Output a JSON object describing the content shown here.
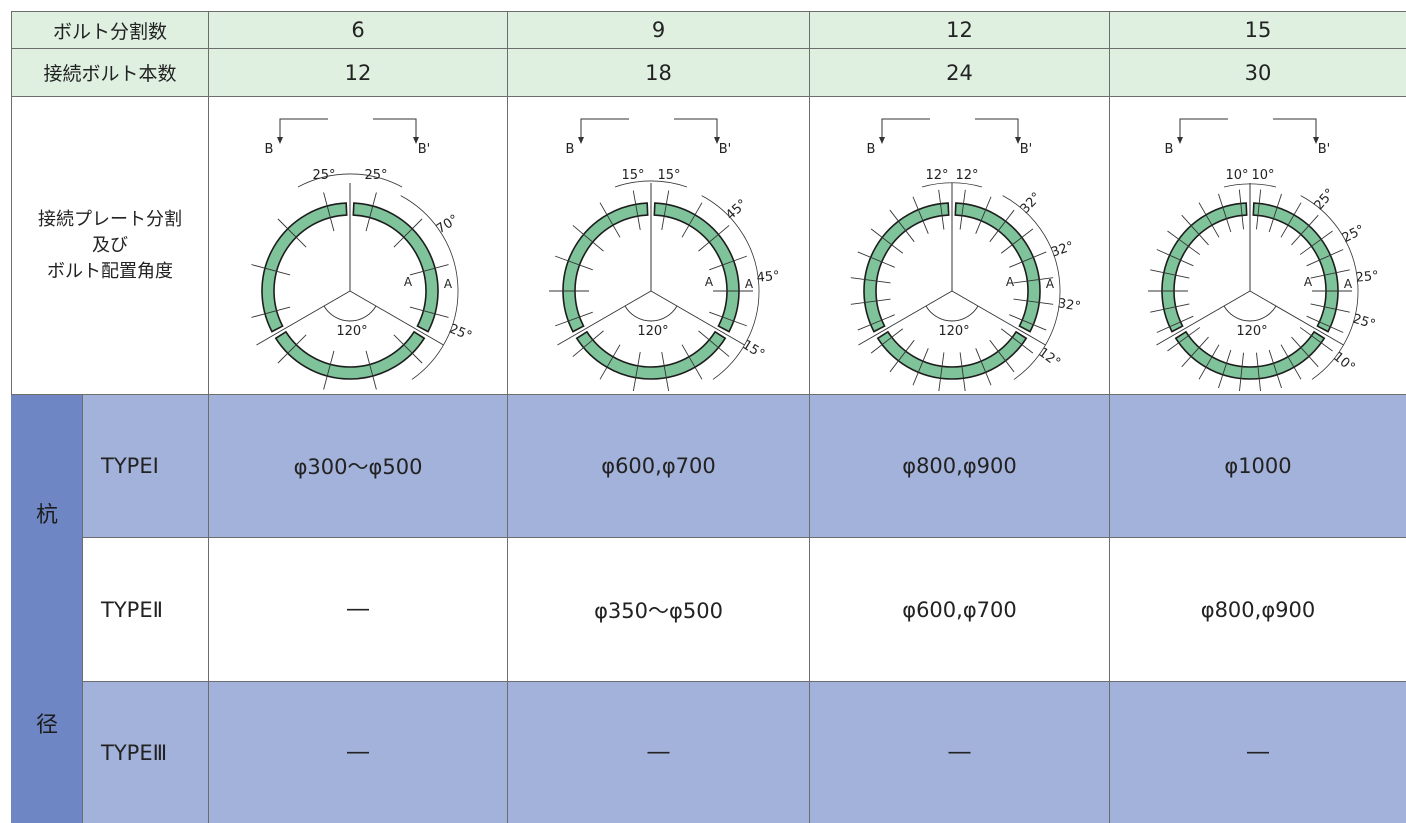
{
  "header": {
    "divisions_label": "ボルト分割数",
    "bolts_label": "接続ボルト本数",
    "columns": [
      {
        "divisions": "6",
        "bolts": "12"
      },
      {
        "divisions": "9",
        "bolts": "18"
      },
      {
        "divisions": "12",
        "bolts": "24"
      },
      {
        "divisions": "15",
        "bolts": "30"
      }
    ]
  },
  "diagram_row": {
    "label_line1": "接続プレート分割",
    "label_line2": "及び",
    "label_line3": "ボルト配置角度",
    "section_left": "B",
    "section_right": "B'",
    "center_angle": "120°",
    "section_mark": "A",
    "diagrams": [
      {
        "a1": "25°",
        "a2": "25°",
        "r1": "70°",
        "r2": "",
        "r3": "",
        "r4": "25°"
      },
      {
        "a1": "15°",
        "a2": "15°",
        "r1": "45°",
        "r2": "45°",
        "r3": "",
        "r4": "15°"
      },
      {
        "a1": "12°",
        "a2": "12°",
        "r1": "32°",
        "r2": "32°",
        "r3": "32°",
        "r4": "12°"
      },
      {
        "a1": "10°",
        "a2": "10°",
        "r1": "25°",
        "r2": "25°",
        "r3": "25°",
        "r4": "25°",
        "r5": "10°"
      }
    ]
  },
  "pile_diameter": {
    "side_char_top": "杭",
    "side_char_bottom": "径",
    "rows": [
      {
        "type": "TYPEⅠ",
        "values": [
          "φ300～φ500",
          "φ600,φ700",
          "φ800,φ900",
          "φ1000"
        ]
      },
      {
        "type": "TYPEⅡ",
        "values": [
          "―",
          "φ350～φ500",
          "φ600,φ700",
          "φ800,φ900"
        ]
      },
      {
        "type": "TYPEⅢ",
        "values": [
          "―",
          "―",
          "―",
          "―"
        ]
      }
    ]
  },
  "colors": {
    "header_bg": "#dff0e0",
    "band_bg": "#a3b2da",
    "sidebar_bg": "#6e86c4",
    "plate_fill": "#7fc39a"
  }
}
